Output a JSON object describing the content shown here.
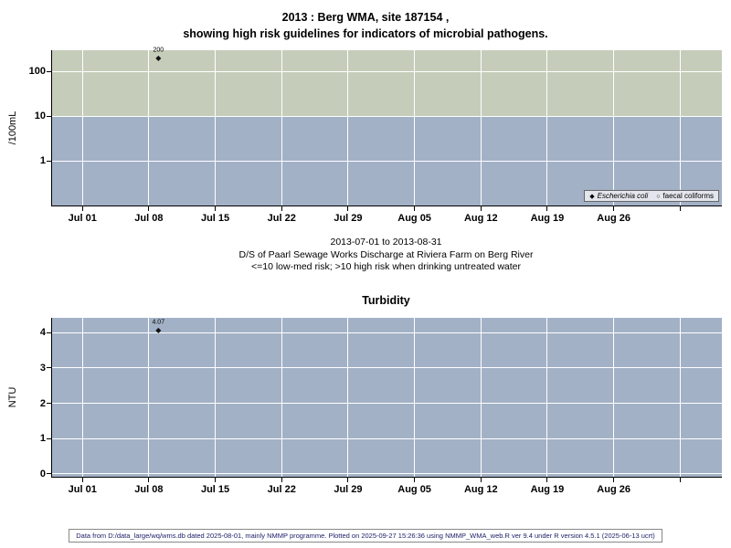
{
  "figure": {
    "footer": "Data from D:/data_large/wq/wms.db dated 2025-08-01, mainly NMMP programme. Plotted on 2025-09-27 15:26:36 using NMMP_WMA_web.R ver 9.4 under R version 4.5.1 (2025-06-13 ucrt)",
    "caption": {
      "line1": "2013-07-01 to 2013-08-31",
      "line2": "D/S of Paarl Sewage Works Discharge at Riviera Farm on Berg River",
      "line3": "<=10 low-med risk; >10 high risk when drinking untreated water"
    }
  },
  "chart_data": [
    {
      "type": "scatter",
      "title": "2013 : Berg WMA, site 187154 ,",
      "subtitle": "showing high risk guidelines for indicators of microbial pathogens.",
      "ylabel": "/100mL",
      "yscale": "log",
      "ylim": [
        0.1,
        300
      ],
      "yticks": [
        1,
        10,
        100
      ],
      "ytick_labels": [
        "1",
        "10",
        "100"
      ],
      "xtick_labels": [
        "Jul 01",
        "Jul 08",
        "Jul 15",
        "Jul 22",
        "Jul 29",
        "Aug 05",
        "Aug 12",
        "Aug 19",
        "Aug 26"
      ],
      "grid": "white-major",
      "risk_threshold": 10,
      "high_risk_band_color": "#c5cdba",
      "low_risk_band_color": "#a3b1c6",
      "legend_position": "bottom-right",
      "series": [
        {
          "name": "Escherichia coli",
          "marker": "diamond",
          "points": [
            {
              "x": "Jul 09",
              "y": 200,
              "label": "200"
            }
          ]
        },
        {
          "name": "faecal coliforms",
          "marker": "circle",
          "points": []
        }
      ]
    },
    {
      "type": "scatter",
      "title": "Turbidity",
      "ylabel": "NTU",
      "yscale": "linear",
      "ylim": [
        -0.08,
        4.42
      ],
      "yticks": [
        0,
        1,
        2,
        3,
        4
      ],
      "ytick_labels": [
        "0",
        "1",
        "2",
        "3",
        "4"
      ],
      "xtick_labels": [
        "Jul 01",
        "Jul 08",
        "Jul 15",
        "Jul 22",
        "Jul 29",
        "Aug 05",
        "Aug 12",
        "Aug 19",
        "Aug 26"
      ],
      "grid": "white-major",
      "plot_background_color": "#a3b1c6",
      "series": [
        {
          "name": "Turbidity",
          "marker": "diamond",
          "points": [
            {
              "x": "Jul 09",
              "y": 4.07,
              "label": "4.07"
            }
          ]
        }
      ]
    }
  ]
}
